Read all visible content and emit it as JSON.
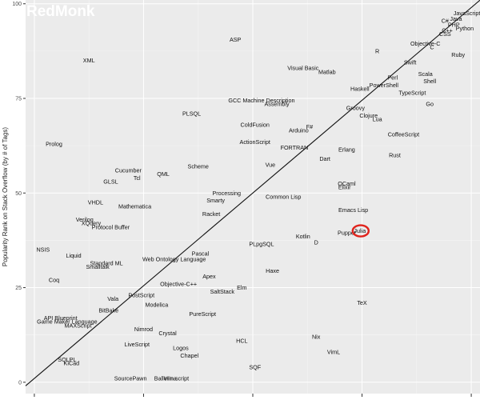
{
  "chart_data": {
    "type": "scatter",
    "title": "",
    "xlabel": "",
    "ylabel": "Popularity Rank on Stack Overflow (by # of Tags)",
    "xlim": [
      -2,
      102
    ],
    "ylim": [
      -3,
      101
    ],
    "yticks": [
      0,
      25,
      50,
      75,
      100
    ],
    "xticks": [
      0,
      25,
      50,
      75,
      100
    ],
    "grid": true,
    "legend": "none",
    "trendline": "linear",
    "highlight_label": "Julia",
    "points": [
      {
        "label": "JavaScript",
        "x": 99,
        "y": 97.5
      },
      {
        "label": "Java",
        "x": 96.5,
        "y": 96
      },
      {
        "label": "C#",
        "x": 94,
        "y": 95.5
      },
      {
        "label": "PHP",
        "x": 96,
        "y": 94.5
      },
      {
        "label": "Python",
        "x": 98.5,
        "y": 93.5
      },
      {
        "label": "C++",
        "x": 94.5,
        "y": 93
      },
      {
        "label": "CSS",
        "x": 94,
        "y": 92
      },
      {
        "label": "Objective-C",
        "x": 89.5,
        "y": 89.5
      },
      {
        "label": "C",
        "x": 91,
        "y": 88.5
      },
      {
        "label": "R",
        "x": 78.5,
        "y": 87.5
      },
      {
        "label": "Ruby",
        "x": 97,
        "y": 86.5
      },
      {
        "label": "Swift",
        "x": 86,
        "y": 84.5
      },
      {
        "label": "Scala",
        "x": 89.5,
        "y": 81.5
      },
      {
        "label": "Perl",
        "x": 82,
        "y": 80.5
      },
      {
        "label": "Shell",
        "x": 90.5,
        "y": 79.5
      },
      {
        "label": "PowerShell",
        "x": 80,
        "y": 78.5
      },
      {
        "label": "Haskell",
        "x": 74.5,
        "y": 77.5
      },
      {
        "label": "TypeScript",
        "x": 86.5,
        "y": 76.5
      },
      {
        "label": "Go",
        "x": 90.5,
        "y": 73.5
      },
      {
        "label": "Groovy",
        "x": 73.5,
        "y": 72.5
      },
      {
        "label": "Clojure",
        "x": 76.5,
        "y": 70.5
      },
      {
        "label": "Lua",
        "x": 78.5,
        "y": 69.5
      },
      {
        "label": "CoffeeScript",
        "x": 84.5,
        "y": 65.5
      },
      {
        "label": "Erlang",
        "x": 71.5,
        "y": 61.5
      },
      {
        "label": "Rust",
        "x": 82.5,
        "y": 60
      },
      {
        "label": "Dart",
        "x": 66.5,
        "y": 59
      },
      {
        "label": "OCaml",
        "x": 71.5,
        "y": 52.5
      },
      {
        "label": "Elixir",
        "x": 71,
        "y": 51.5
      },
      {
        "label": "Emacs Lisp",
        "x": 73,
        "y": 45.5
      },
      {
        "label": "Julia",
        "x": 74.5,
        "y": 40
      },
      {
        "label": "Puppet",
        "x": 71.5,
        "y": 39.5
      },
      {
        "label": "Kotlin",
        "x": 61.5,
        "y": 38.5
      },
      {
        "label": "D",
        "x": 64.5,
        "y": 37
      },
      {
        "label": "TeX",
        "x": 75,
        "y": 21
      },
      {
        "label": "Nix",
        "x": 64.5,
        "y": 12
      },
      {
        "label": "VimL",
        "x": 68.5,
        "y": 8
      },
      {
        "label": "XML",
        "x": 12.5,
        "y": 85
      },
      {
        "label": "ASP",
        "x": 46,
        "y": 90.5
      },
      {
        "label": "Visual Basic",
        "x": 61.5,
        "y": 83
      },
      {
        "label": "Matlab",
        "x": 67,
        "y": 82
      },
      {
        "label": "GCC Machine Description",
        "x": 52,
        "y": 74.5
      },
      {
        "label": "Assembly",
        "x": 55.5,
        "y": 73.5
      },
      {
        "label": "PLSQL",
        "x": 36,
        "y": 71
      },
      {
        "label": "ColdFusion",
        "x": 50.5,
        "y": 68
      },
      {
        "label": "F#",
        "x": 63,
        "y": 67.5
      },
      {
        "label": "Arduino",
        "x": 60.5,
        "y": 66.5
      },
      {
        "label": "ActionScript",
        "x": 50.5,
        "y": 63.5
      },
      {
        "label": "FORTRAN",
        "x": 59.5,
        "y": 62
      },
      {
        "label": "Prolog",
        "x": 4.5,
        "y": 63
      },
      {
        "label": "Vue",
        "x": 54,
        "y": 57.5
      },
      {
        "label": "Scheme",
        "x": 37.5,
        "y": 57
      },
      {
        "label": "Cucumber",
        "x": 21.5,
        "y": 56
      },
      {
        "label": "QML",
        "x": 29.5,
        "y": 55
      },
      {
        "label": "Tcl",
        "x": 23.5,
        "y": 54
      },
      {
        "label": "GLSL",
        "x": 17.5,
        "y": 53
      },
      {
        "label": "Processing",
        "x": 44,
        "y": 50
      },
      {
        "label": "Common Lisp",
        "x": 57,
        "y": 49
      },
      {
        "label": "Smarty",
        "x": 41.5,
        "y": 48
      },
      {
        "label": "VHDL",
        "x": 14,
        "y": 47.5
      },
      {
        "label": "Mathematica",
        "x": 23,
        "y": 46.5
      },
      {
        "label": "Racket",
        "x": 40.5,
        "y": 44.5
      },
      {
        "label": "Verilog",
        "x": 11.5,
        "y": 43
      },
      {
        "label": "XQuery",
        "x": 13,
        "y": 42
      },
      {
        "label": "Protocol Buffer",
        "x": 17.5,
        "y": 41
      },
      {
        "label": "PLpgSQL",
        "x": 52,
        "y": 36.5
      },
      {
        "label": "NSIS",
        "x": 2,
        "y": 35
      },
      {
        "label": "Pascal",
        "x": 38,
        "y": 34
      },
      {
        "label": "Liquid",
        "x": 9,
        "y": 33.5
      },
      {
        "label": "Web Ontology Language",
        "x": 32,
        "y": 32.5
      },
      {
        "label": "Standard ML",
        "x": 16.5,
        "y": 31.5
      },
      {
        "label": "Smalltalk",
        "x": 14.5,
        "y": 30.5
      },
      {
        "label": "Haxe",
        "x": 54.5,
        "y": 29.5
      },
      {
        "label": "Apex",
        "x": 40,
        "y": 28
      },
      {
        "label": "Coq",
        "x": 4.5,
        "y": 27
      },
      {
        "label": "Objective-C++",
        "x": 33,
        "y": 26
      },
      {
        "label": "Elm",
        "x": 47.5,
        "y": 25
      },
      {
        "label": "SaltStack",
        "x": 43,
        "y": 24
      },
      {
        "label": "PostScript",
        "x": 24.5,
        "y": 23
      },
      {
        "label": "Vala",
        "x": 18,
        "y": 22
      },
      {
        "label": "Modelica",
        "x": 28,
        "y": 20.5
      },
      {
        "label": "BitBake",
        "x": 17,
        "y": 19
      },
      {
        "label": "PureScript",
        "x": 38.5,
        "y": 18
      },
      {
        "label": "API Blueprint",
        "x": 6,
        "y": 17
      },
      {
        "label": "Game Maker Language",
        "x": 7.5,
        "y": 16
      },
      {
        "label": "MAXScript",
        "x": 10,
        "y": 15
      },
      {
        "label": "Nimrod",
        "x": 25,
        "y": 14
      },
      {
        "label": "Crystal",
        "x": 30.5,
        "y": 13
      },
      {
        "label": "HCL",
        "x": 47.5,
        "y": 11
      },
      {
        "label": "LiveScript",
        "x": 23.5,
        "y": 10
      },
      {
        "label": "Logos",
        "x": 33.5,
        "y": 9
      },
      {
        "label": "Chapel",
        "x": 35.5,
        "y": 7
      },
      {
        "label": "SQLPL",
        "x": 7.5,
        "y": 6
      },
      {
        "label": "KiCad",
        "x": 8.5,
        "y": 5
      },
      {
        "label": "SQF",
        "x": 50.5,
        "y": 4
      },
      {
        "label": "SourcePawn",
        "x": 22,
        "y": 1
      },
      {
        "label": "Ballerina",
        "x": 30,
        "y": 1
      },
      {
        "label": "Vim script",
        "x": 32.5,
        "y": 1
      }
    ]
  },
  "branding": {
    "logo_text": "RedMonk",
    "colors": {
      "panel": "#ebebeb",
      "highlight": "#e0231c",
      "logo": "#ffffff"
    }
  }
}
